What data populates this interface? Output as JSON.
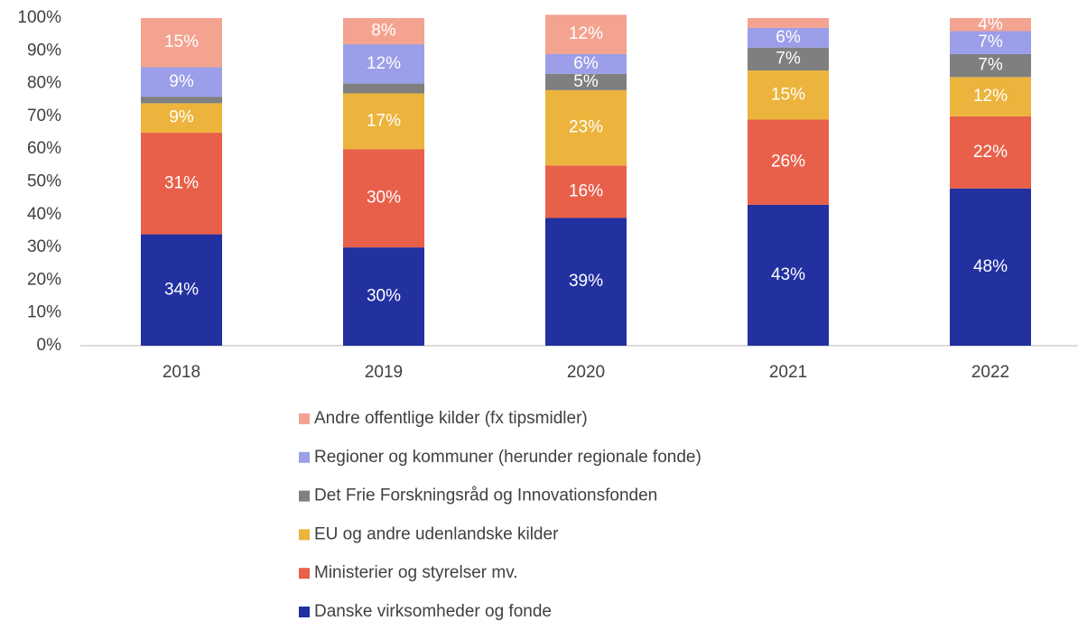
{
  "chart_data": {
    "type": "stacked_bar",
    "categories": [
      "2018",
      "2019",
      "2020",
      "2021",
      "2022"
    ],
    "series": [
      {
        "name": "Danske virksomheder og fonde",
        "color": "#2230a0",
        "values": [
          34,
          30,
          39,
          43,
          48
        ],
        "value_labels": [
          "34%",
          "30%",
          "39%",
          "43%",
          "48%"
        ]
      },
      {
        "name": "Ministerier og styrelser mv.",
        "color": "#e8604a",
        "values": [
          31,
          30,
          16,
          26,
          22
        ],
        "value_labels": [
          "31%",
          "30%",
          "16%",
          "26%",
          "22%"
        ]
      },
      {
        "name": "EU og andre udenlandske kilder",
        "color": "#ecb43c",
        "values": [
          9,
          17,
          23,
          15,
          12
        ],
        "value_labels": [
          "9%",
          "17%",
          "23%",
          "15%",
          "12%"
        ]
      },
      {
        "name": "Det Frie Forskningsråd og Innovationsfonden",
        "color": "#7f7f7f",
        "values": [
          2,
          3,
          5,
          7,
          7
        ],
        "value_labels": [
          null,
          null,
          "5%",
          "7%",
          "7%"
        ]
      },
      {
        "name": "Regioner og kommuner (herunder regionale fonde)",
        "color": "#9b9ee8",
        "values": [
          9,
          12,
          6,
          6,
          7
        ],
        "value_labels": [
          "9%",
          "12%",
          "6%",
          "6%",
          "7%"
        ]
      },
      {
        "name": "Andre offentlige kilder (fx tipsmidler)",
        "color": "#f4a390",
        "values": [
          15,
          8,
          12,
          3,
          4
        ],
        "value_labels": [
          "15%",
          "8%",
          "12%",
          null,
          "4%"
        ]
      }
    ],
    "ylim": [
      0,
      100
    ],
    "yticks": [
      {
        "value": 0,
        "label": "0%"
      },
      {
        "value": 10,
        "label": "10%"
      },
      {
        "value": 20,
        "label": "20%"
      },
      {
        "value": 30,
        "label": "30%"
      },
      {
        "value": 40,
        "label": "40%"
      },
      {
        "value": 50,
        "label": "50%"
      },
      {
        "value": 60,
        "label": "60%"
      },
      {
        "value": 70,
        "label": "70%"
      },
      {
        "value": 80,
        "label": "80%"
      },
      {
        "value": 90,
        "label": "90%"
      },
      {
        "value": 100,
        "label": "100%"
      }
    ],
    "legend": "bottom"
  }
}
